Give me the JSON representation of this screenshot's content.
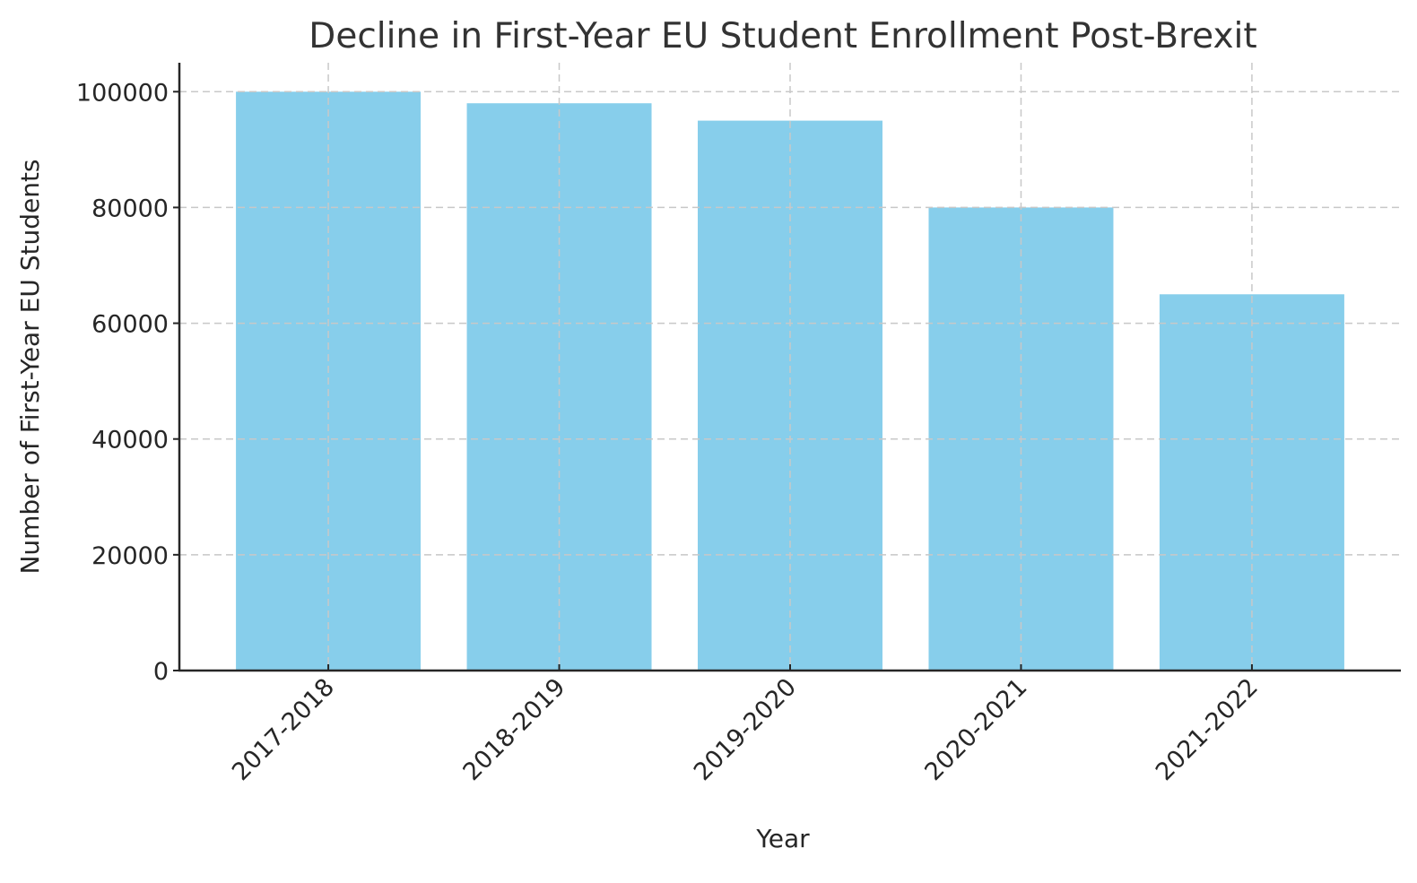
{
  "chart_data": {
    "type": "bar",
    "title": "Decline in First-Year EU Student Enrollment Post-Brexit",
    "xlabel": "Year",
    "ylabel": "Number of First-Year EU Students",
    "categories": [
      "2017-2018",
      "2018-2019",
      "2019-2020",
      "2020-2021",
      "2021-2022"
    ],
    "values": [
      100000,
      98000,
      95000,
      80000,
      65000
    ],
    "ylim": [
      0,
      105000
    ],
    "yticks": [
      0,
      20000,
      40000,
      60000,
      80000,
      100000
    ],
    "ytick_labels": [
      "0",
      "20000",
      "40000",
      "60000",
      "80000",
      "100000"
    ],
    "xtick_rotation": 45,
    "grid": true,
    "grid_style": "dashed",
    "legend": null,
    "colors": {
      "bar": "#87CEEB",
      "grid": "#c8c8c8",
      "axis": "#262626",
      "title": "#333333"
    }
  }
}
